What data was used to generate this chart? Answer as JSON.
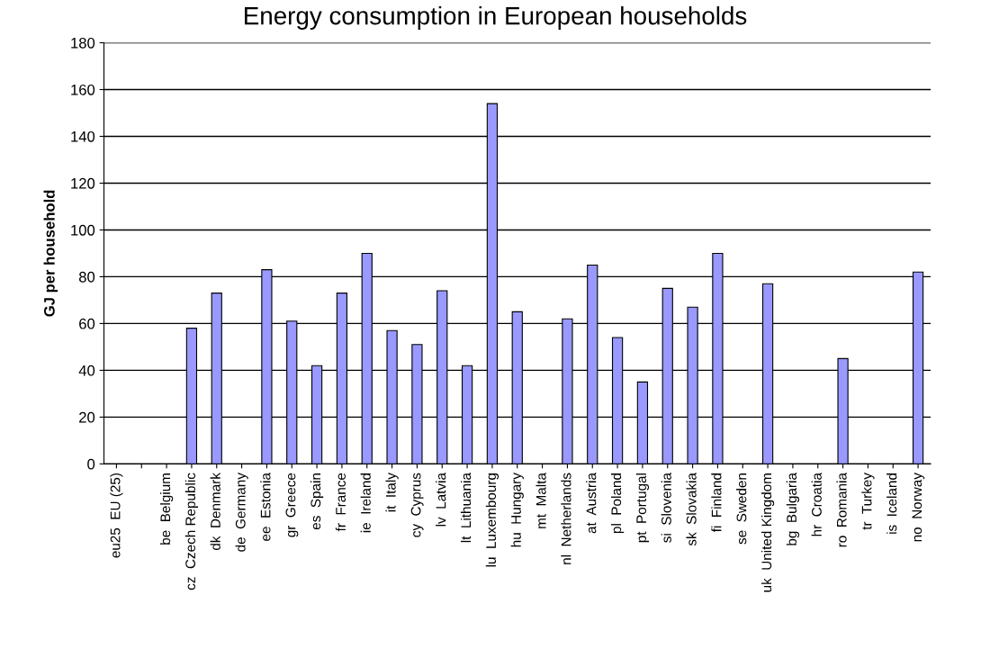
{
  "chart_data": {
    "type": "bar",
    "title": "Energy consumption in European households",
    "ylabel": "GJ per household",
    "categories": [
      "eu25  EU (25)",
      null,
      "be  Belgium",
      "cz  Czech Republic",
      "dk  Denmark",
      "de  Germany",
      "ee  Estonia",
      "gr  Greece",
      "es  Spain",
      "fr  France",
      "ie  Ireland",
      "it  Italy",
      "cy  Cyprus",
      "lv  Latvia",
      "lt  Lithuania",
      "lu  Luxembourg",
      "hu  Hungary",
      "mt  Malta",
      "nl  Netherlands",
      "at  Austria",
      "pl  Poland",
      "pt  Portugal",
      "si  Slovenia",
      "sk  Slovakia",
      "fi  Finland",
      "se  Sweden",
      "uk  United Kingdom",
      "bg  Bulgaria",
      "hr  Croatia",
      "ro  Romania",
      "tr  Turkey",
      "is  Iceland",
      "no  Norway"
    ],
    "values": [
      null,
      null,
      null,
      58,
      73,
      null,
      83,
      61,
      42,
      73,
      90,
      57,
      51,
      74,
      42,
      154,
      65,
      null,
      62,
      85,
      54,
      35,
      75,
      67,
      90,
      null,
      77,
      null,
      null,
      45,
      null,
      null,
      82
    ],
    "color": "#9999ff",
    "ylim": [
      0,
      180
    ],
    "yticks": [
      0,
      20,
      40,
      60,
      80,
      100,
      120,
      140,
      160,
      180
    ],
    "grid": "y",
    "legend": false
  }
}
